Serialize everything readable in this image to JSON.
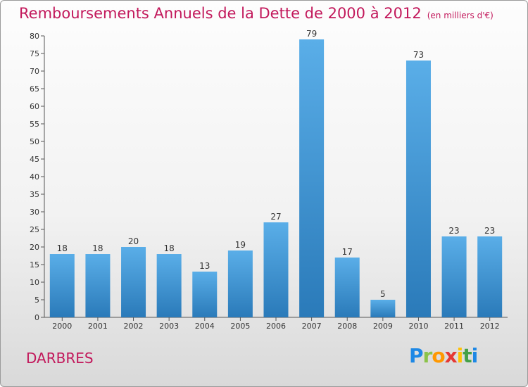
{
  "header": {
    "title": "Remboursements Annuels de la Dette de 2000 à 2012",
    "unit": "(en milliers d'€)"
  },
  "footer": {
    "town": "DARBRES",
    "logo_text": "Proxiti"
  },
  "colors": {
    "title": "#c2185b",
    "bar_top": "#5aaee8",
    "bar_bottom": "#2a7ab9"
  },
  "chart_data": {
    "type": "bar",
    "title": "Remboursements Annuels de la Dette de 2000 à 2012",
    "xlabel": "",
    "ylabel": "",
    "categories": [
      "2000",
      "2001",
      "2002",
      "2003",
      "2004",
      "2005",
      "2006",
      "2007",
      "2008",
      "2009",
      "2010",
      "2011",
      "2012"
    ],
    "values": [
      18,
      18,
      20,
      18,
      13,
      19,
      27,
      79,
      17,
      5,
      73,
      23,
      23
    ],
    "ylim": [
      0,
      80
    ],
    "yticks": [
      0,
      5,
      10,
      15,
      20,
      25,
      30,
      35,
      40,
      45,
      50,
      55,
      60,
      65,
      70,
      75,
      80
    ],
    "grid": false
  }
}
